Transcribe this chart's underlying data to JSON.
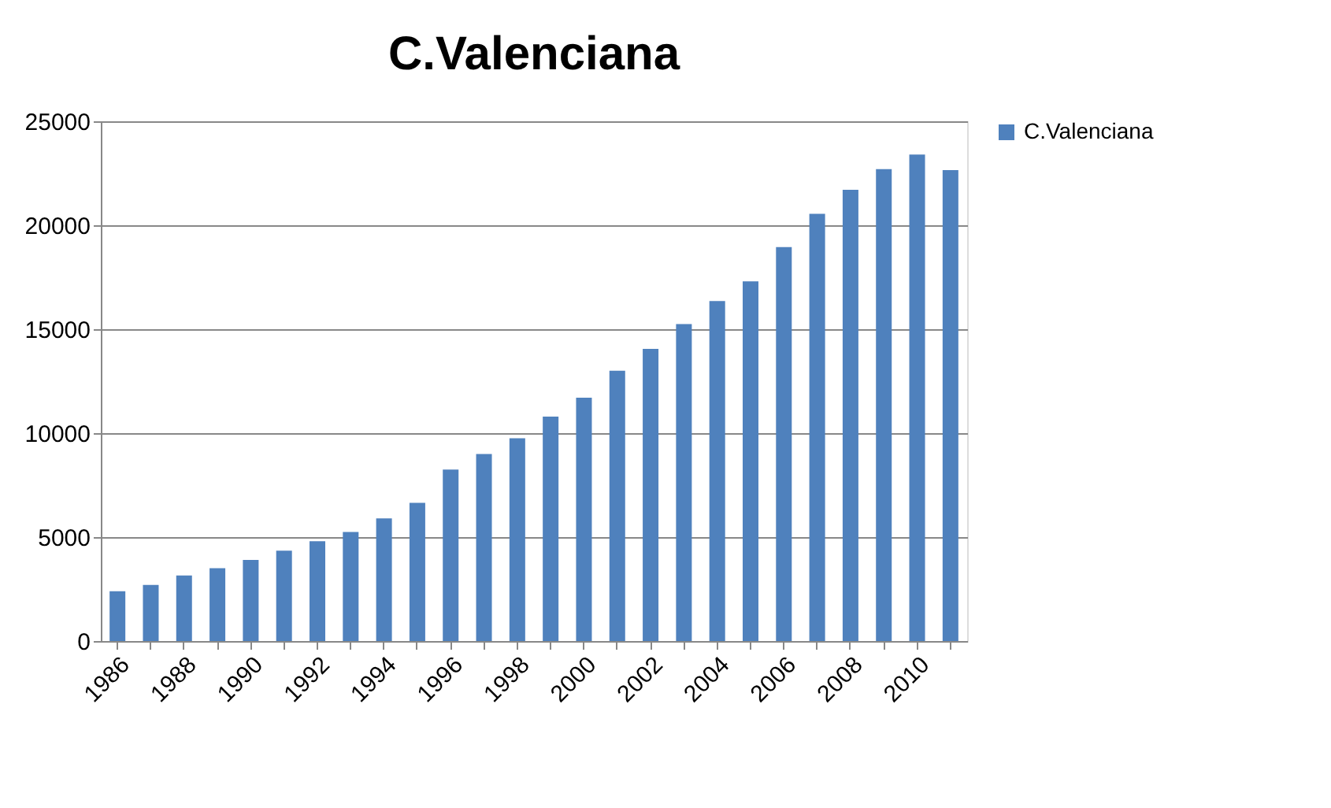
{
  "chart_data": {
    "type": "bar",
    "title": "C.Valenciana",
    "categories": [
      "1986",
      null,
      "1988",
      null,
      "1990",
      null,
      "1992",
      null,
      "1994",
      null,
      "1996",
      null,
      "1998",
      null,
      "2000",
      null,
      "2002",
      null,
      "2004",
      null,
      "2006",
      null,
      "2008",
      null,
      "2010",
      null
    ],
    "series": [
      {
        "name": "C.Valenciana",
        "color": "#4f81bd",
        "values": [
          2400,
          2700,
          3150,
          3500,
          3900,
          4350,
          4800,
          5250,
          5900,
          6650,
          8250,
          9000,
          9750,
          10800,
          11700,
          13000,
          14050,
          15250,
          16350,
          17300,
          18950,
          20550,
          21700,
          22700,
          23400,
          22650
        ]
      }
    ],
    "ylim": [
      0,
      25000
    ],
    "yticks": [
      0,
      5000,
      10000,
      15000,
      20000,
      25000
    ],
    "grid": "y",
    "legend": "right"
  }
}
